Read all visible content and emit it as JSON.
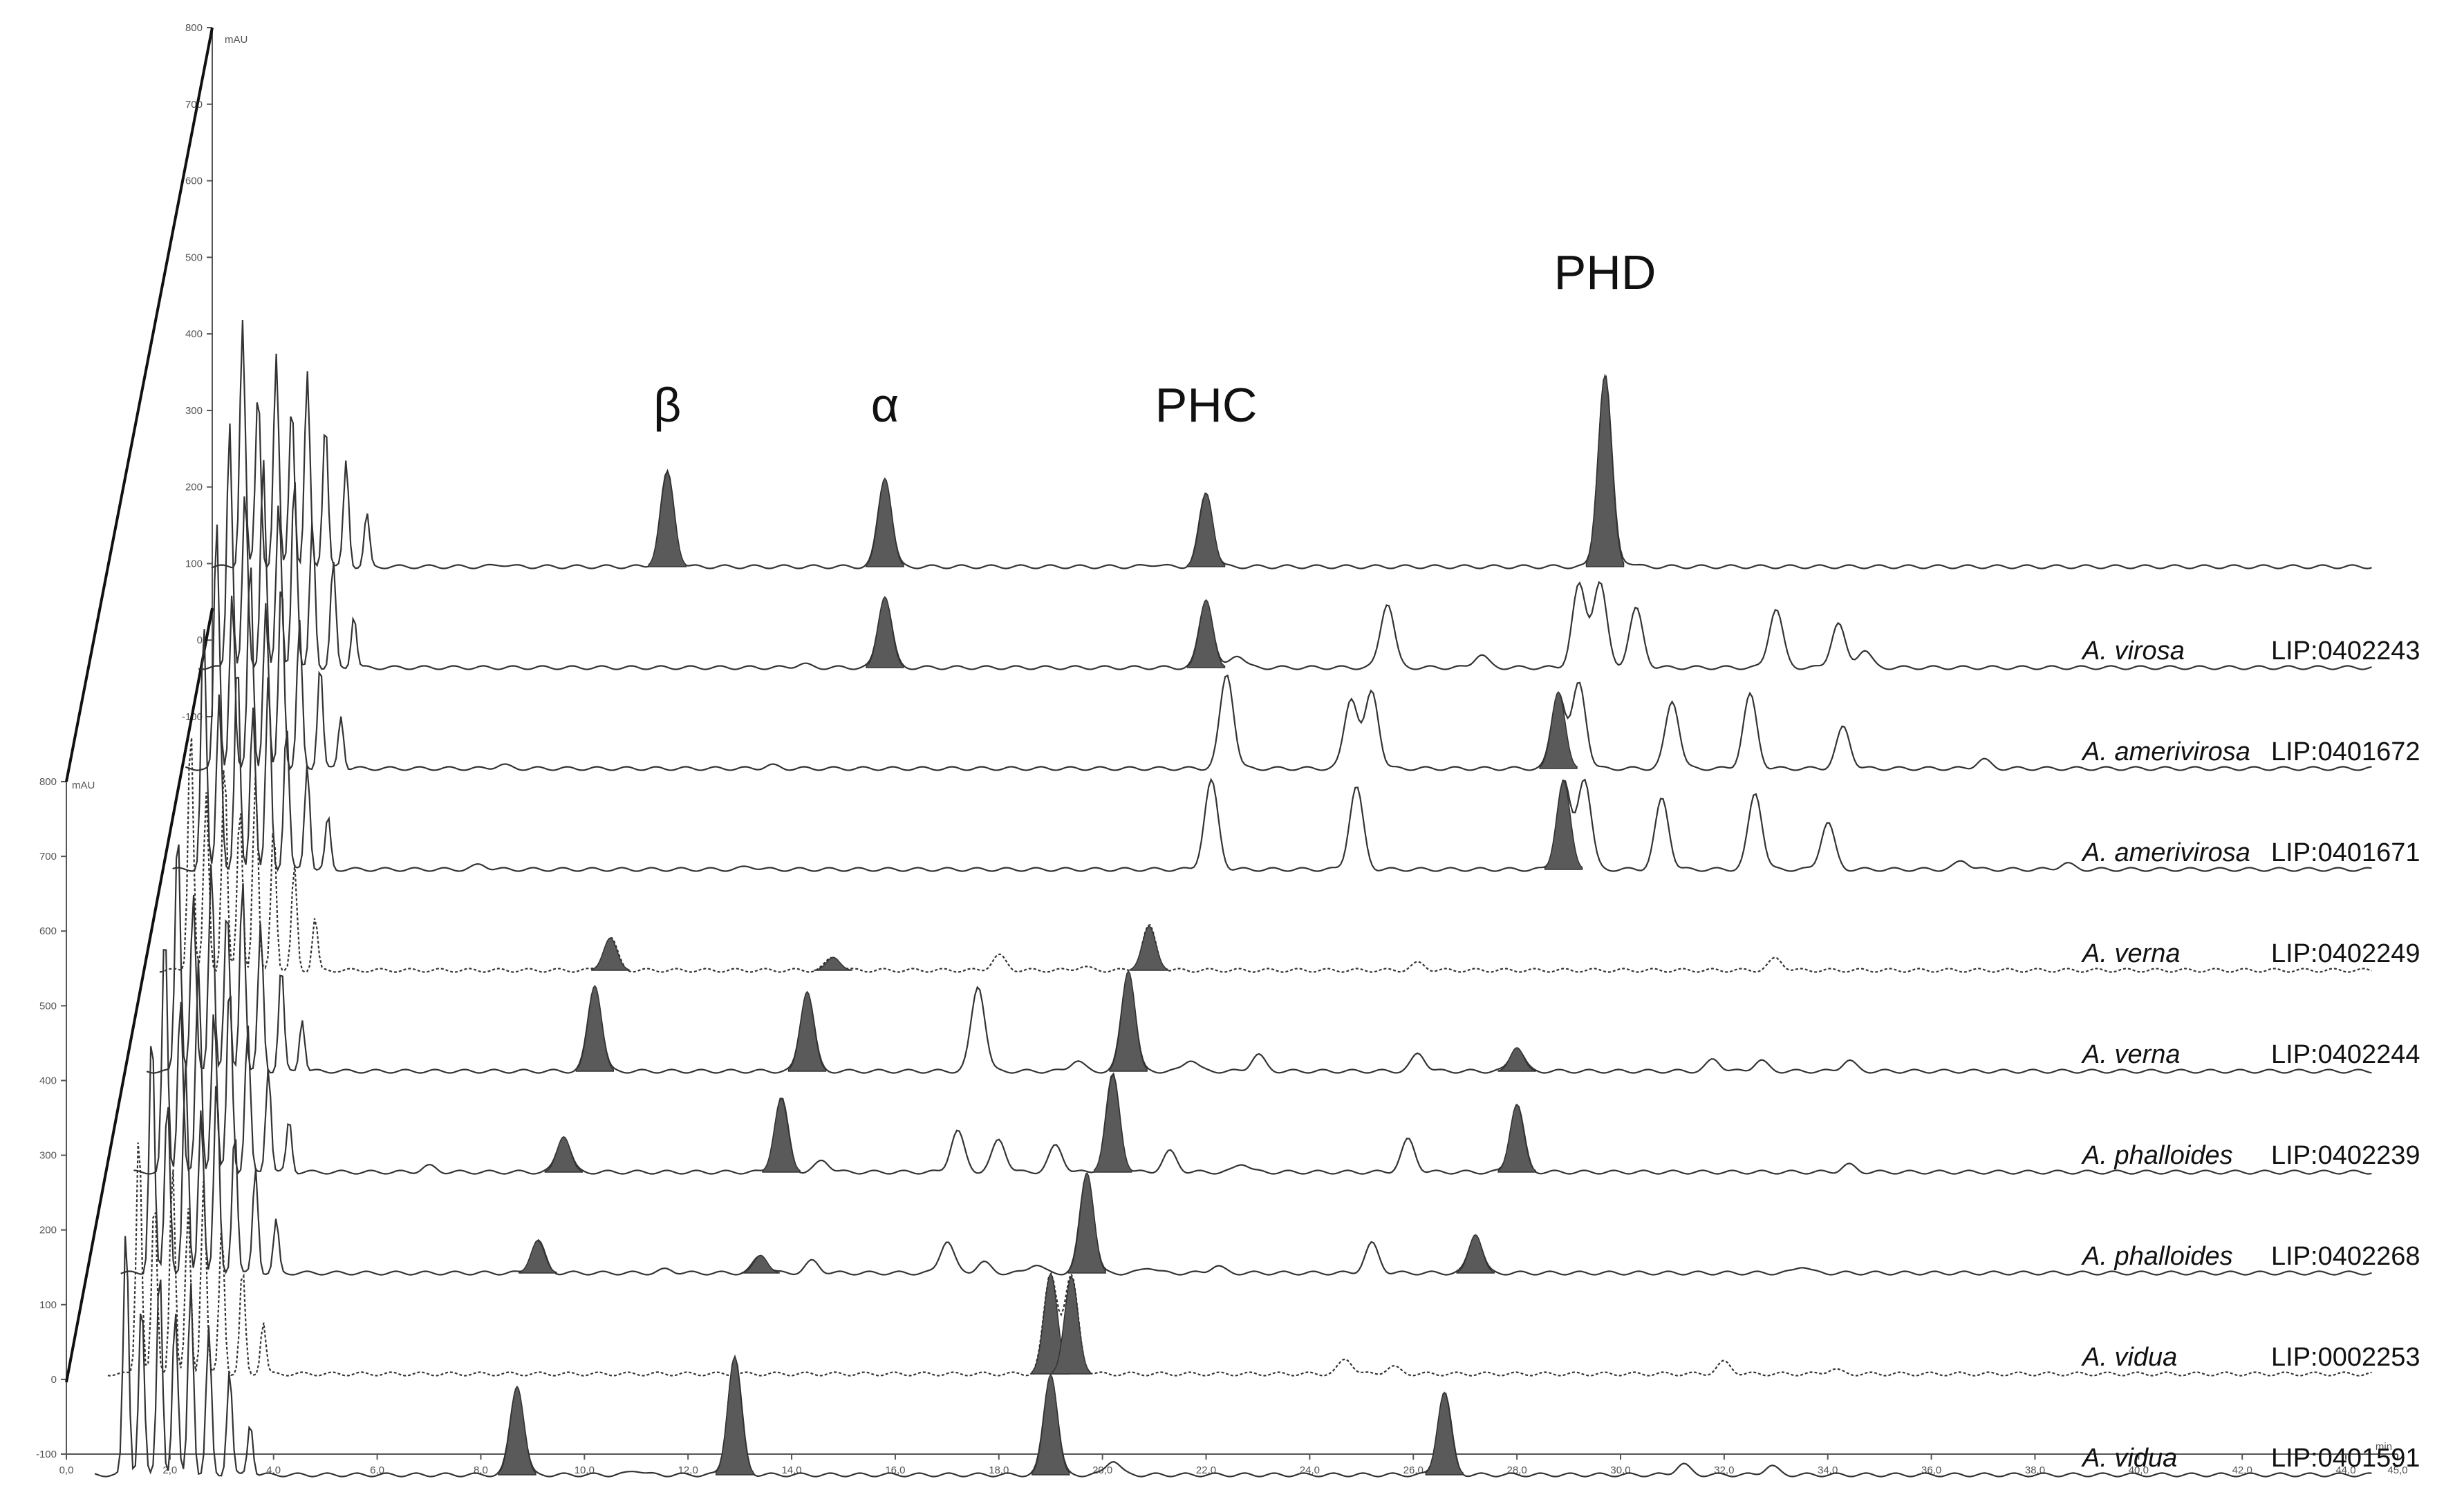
{
  "chart_data": {
    "type": "line",
    "title": "",
    "xlabel": "min",
    "ylabel": "mAU",
    "xlim": [
      0,
      45
    ],
    "ylim": [
      -100,
      800
    ],
    "x_ticks": [
      "0,0",
      "2,0",
      "4,0",
      "6,0",
      "8,0",
      "10,0",
      "12,0",
      "14,0",
      "16,0",
      "18,0",
      "20,0",
      "22,0",
      "24,0",
      "26,0",
      "28,0",
      "30,0",
      "32,0",
      "34,0",
      "36,0",
      "38,0",
      "40,0",
      "42,0",
      "44,0",
      "45,0"
    ],
    "y_ticks": [
      "-100",
      "0",
      "100",
      "200",
      "300",
      "400",
      "500",
      "600",
      "700",
      "800"
    ],
    "back_y_ticks": [
      "-100",
      "0",
      "100",
      "200",
      "300",
      "400",
      "500",
      "600",
      "700",
      "800"
    ],
    "back_y_unit": "mAU",
    "front_y_unit": "mAU",
    "x_unit": "min",
    "peak_labels": [
      {
        "text": "β",
        "rt": 11.6
      },
      {
        "text": "α",
        "rt": 15.8
      },
      {
        "text": "PHC",
        "rt": 22.0
      },
      {
        "text": "PHD",
        "rt": 29.7
      }
    ],
    "series": [
      {
        "species": "",
        "lip": "",
        "offset": 1.0,
        "style": "solid",
        "peaks": [
          [
            11.6,
            160,
            true
          ],
          [
            15.8,
            150,
            true
          ],
          [
            22.0,
            125,
            true
          ],
          [
            29.7,
            325,
            true
          ],
          [
            30.1,
            8,
            false
          ],
          [
            8.4,
            4,
            false
          ],
          [
            21.0,
            4,
            false
          ]
        ]
      },
      {
        "species": "A. virosa",
        "lip": "LIP:0402243",
        "offset": 0.87,
        "style": "solid",
        "peaks": [
          [
            15.8,
            120,
            true
          ],
          [
            22.0,
            115,
            true
          ],
          [
            22.6,
            22,
            false
          ],
          [
            25.5,
            110,
            false
          ],
          [
            27.3,
            22,
            false
          ],
          [
            29.2,
            140,
            false
          ],
          [
            29.6,
            145,
            false
          ],
          [
            30.3,
            100,
            false
          ],
          [
            33.0,
            100,
            false
          ],
          [
            34.2,
            75,
            false
          ],
          [
            34.7,
            30,
            false
          ],
          [
            14.2,
            6,
            false
          ]
        ]
      },
      {
        "species": "A. amerivirosa",
        "lip": "LIP:0401672",
        "offset": 0.74,
        "style": "solid",
        "peaks": [
          [
            22.4,
            160,
            false
          ],
          [
            24.8,
            120,
            false
          ],
          [
            25.2,
            130,
            false
          ],
          [
            28.8,
            130,
            true
          ],
          [
            29.2,
            145,
            false
          ],
          [
            31.0,
            115,
            false
          ],
          [
            32.5,
            125,
            false
          ],
          [
            34.3,
            70,
            false
          ],
          [
            8.4,
            6,
            false
          ],
          [
            13.6,
            5,
            false
          ],
          [
            37.0,
            15,
            false
          ]
        ]
      },
      {
        "species": "A. amerivirosa",
        "lip": "LIP:0401671",
        "offset": 0.61,
        "style": "solid",
        "peaks": [
          [
            22.1,
            150,
            false
          ],
          [
            24.9,
            140,
            false
          ],
          [
            28.9,
            150,
            true
          ],
          [
            29.3,
            155,
            false
          ],
          [
            30.8,
            120,
            false
          ],
          [
            32.6,
            130,
            false
          ],
          [
            34.0,
            80,
            false
          ],
          [
            8.0,
            8,
            false
          ],
          [
            13.2,
            5,
            false
          ],
          [
            36.6,
            15,
            false
          ],
          [
            38.6,
            10,
            false
          ]
        ]
      },
      {
        "species": "A. verna",
        "lip": "LIP:0402249",
        "offset": 0.48,
        "style": "dotted",
        "peaks": [
          [
            10.5,
            55,
            true
          ],
          [
            14.8,
            22,
            true
          ],
          [
            18.0,
            25,
            false
          ],
          [
            20.9,
            75,
            true
          ],
          [
            26.1,
            12,
            false
          ],
          [
            33.0,
            20,
            false
          ],
          [
            19.6,
            6,
            false
          ]
        ]
      },
      {
        "species": "A. verna",
        "lip": "LIP:0402244",
        "offset": 0.35,
        "style": "solid",
        "peaks": [
          [
            10.2,
            145,
            true
          ],
          [
            14.3,
            135,
            true
          ],
          [
            17.6,
            145,
            false
          ],
          [
            20.5,
            170,
            true
          ],
          [
            21.7,
            20,
            false
          ],
          [
            23.0,
            28,
            false
          ],
          [
            26.1,
            30,
            false
          ],
          [
            28.0,
            40,
            true
          ],
          [
            31.8,
            20,
            false
          ],
          [
            32.7,
            18,
            false
          ],
          [
            34.4,
            18,
            false
          ],
          [
            19.5,
            18,
            false
          ]
        ]
      },
      {
        "species": "A. phalloides",
        "lip": "LIP:0402239",
        "offset": 0.22,
        "style": "solid",
        "peaks": [
          [
            9.6,
            60,
            true
          ],
          [
            13.8,
            125,
            true
          ],
          [
            14.6,
            20,
            false
          ],
          [
            17.2,
            70,
            false
          ],
          [
            18.0,
            55,
            false
          ],
          [
            19.1,
            45,
            false
          ],
          [
            20.2,
            165,
            true
          ],
          [
            21.3,
            35,
            false
          ],
          [
            22.7,
            15,
            false
          ],
          [
            25.9,
            55,
            false
          ],
          [
            28.0,
            115,
            true
          ],
          [
            34.4,
            12,
            false
          ],
          [
            7.0,
            10,
            false
          ]
        ]
      },
      {
        "species": "A. phalloides",
        "lip": "LIP:0402268",
        "offset": 0.09,
        "style": "solid",
        "peaks": [
          [
            9.1,
            55,
            true
          ],
          [
            13.4,
            30,
            true
          ],
          [
            14.4,
            20,
            false
          ],
          [
            17.0,
            55,
            false
          ],
          [
            17.7,
            18,
            false
          ],
          [
            18.7,
            15,
            false
          ],
          [
            19.7,
            170,
            true
          ],
          [
            20.9,
            10,
            false
          ],
          [
            22.2,
            12,
            false
          ],
          [
            25.2,
            50,
            false
          ],
          [
            27.2,
            65,
            true
          ],
          [
            33.5,
            12,
            false
          ],
          [
            11.6,
            6,
            false
          ]
        ]
      },
      {
        "species": "A. vidua",
        "lip": "LIP:0002253",
        "offset": -0.04,
        "style": "dotted",
        "peaks": [
          [
            19.0,
            170,
            true
          ],
          [
            19.4,
            165,
            true
          ],
          [
            24.7,
            25,
            false
          ],
          [
            25.6,
            12,
            false
          ],
          [
            32.0,
            20,
            false
          ],
          [
            34.1,
            8,
            false
          ]
        ]
      },
      {
        "species": "A. vidua",
        "lip": "LIP:0401591",
        "offset": -0.17,
        "style": "solid",
        "peaks": [
          [
            8.7,
            150,
            true
          ],
          [
            12.9,
            200,
            true
          ],
          [
            19.0,
            170,
            true
          ],
          [
            20.2,
            25,
            false
          ],
          [
            26.6,
            140,
            true
          ],
          [
            31.2,
            18,
            false
          ],
          [
            32.9,
            15,
            false
          ],
          [
            11.0,
            8,
            false
          ]
        ]
      }
    ]
  },
  "colors": {
    "trace": "#333333",
    "fill": "#5a5a5a",
    "axis": "#555555"
  }
}
